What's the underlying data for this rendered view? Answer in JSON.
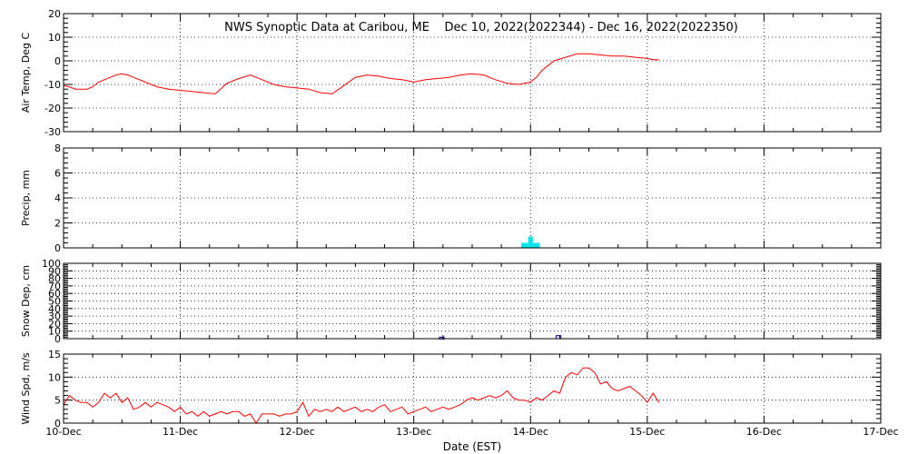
{
  "title": "NWS Synoptic Data at Caribou, ME    Dec 10, 2022(2022344) - Dec 16, 2022(2022350)",
  "x_axis": {
    "label": "Date (EST)",
    "ticks": [
      "10-Dec",
      "11-Dec",
      "12-Dec",
      "13-Dec",
      "14-Dec",
      "15-Dec",
      "16-Dec",
      "17-Dec"
    ],
    "range_days": [
      0,
      7
    ]
  },
  "colors": {
    "temp": "#ff0000",
    "precip": "#00e5ee",
    "snow": "#00008b",
    "wind": "#ff0000",
    "frame": "#000000"
  },
  "chart_data": [
    {
      "id": "air-temp",
      "type": "line",
      "ylabel": "Air Temp, Deg C",
      "ylim": [
        -30,
        20
      ],
      "yticks": [
        -30,
        -20,
        -10,
        0,
        10,
        20
      ],
      "grid": true,
      "x_days": [
        0,
        0.05,
        0.1,
        0.15,
        0.2,
        0.25,
        0.3,
        0.35,
        0.4,
        0.45,
        0.5,
        0.55,
        0.6,
        0.7,
        0.8,
        0.9,
        1.0,
        1.1,
        1.2,
        1.3,
        1.4,
        1.5,
        1.6,
        1.7,
        1.8,
        1.9,
        2.0,
        2.1,
        2.2,
        2.3,
        2.4,
        2.5,
        2.6,
        2.7,
        2.8,
        2.9,
        3.0,
        3.1,
        3.2,
        3.3,
        3.4,
        3.5,
        3.6,
        3.7,
        3.8,
        3.9,
        4.0,
        4.05,
        4.1,
        4.15,
        4.2,
        4.3,
        4.4,
        4.5,
        4.6,
        4.7,
        4.8,
        4.9,
        5.0,
        5.05,
        5.1
      ],
      "values": [
        -10.5,
        -11,
        -12,
        -12,
        -12,
        -11,
        -9,
        -8,
        -7,
        -6,
        -5.5,
        -6,
        -7,
        -9,
        -11,
        -12,
        -12.5,
        -13,
        -13.5,
        -14,
        -9.5,
        -7.5,
        -6,
        -8,
        -10,
        -11,
        -11.5,
        -12,
        -13.5,
        -14,
        -10.5,
        -7,
        -6,
        -6.5,
        -7.5,
        -8,
        -9,
        -8,
        -7.5,
        -7,
        -6,
        -5.5,
        -6,
        -8,
        -9.5,
        -10,
        -9,
        -7,
        -4,
        -2,
        0,
        1.5,
        3,
        3,
        2.5,
        2,
        2,
        1.5,
        1,
        0.5,
        0.5
      ]
    },
    {
      "id": "precip",
      "type": "bar",
      "ylabel": "Precip, mm",
      "ylim": [
        0,
        8
      ],
      "yticks": [
        0,
        2,
        4,
        6,
        8
      ],
      "grid": true,
      "bars": [
        {
          "x_start_day": 3.92,
          "x_end_day": 3.98,
          "value": 0.4
        },
        {
          "x_start_day": 3.98,
          "x_end_day": 4.02,
          "value": 0.9
        },
        {
          "x_start_day": 4.02,
          "x_end_day": 4.08,
          "value": 0.4
        }
      ]
    },
    {
      "id": "snow-depth",
      "type": "bar",
      "ylabel": "Snow Dep, cm",
      "ylim": [
        0,
        100
      ],
      "yticks": [
        0,
        10,
        20,
        30,
        40,
        50,
        60,
        70,
        80,
        90,
        100
      ],
      "grid": true,
      "bars": [
        {
          "x_start_day": 3.22,
          "x_end_day": 3.26,
          "value": 2
        },
        {
          "x_start_day": 4.22,
          "x_end_day": 4.26,
          "value": 4
        }
      ]
    },
    {
      "id": "wind-speed",
      "type": "line",
      "ylabel": "Wind Spd, m/s",
      "ylim": [
        0,
        15
      ],
      "yticks": [
        0,
        5,
        10,
        15
      ],
      "grid": true,
      "x_days": [
        0,
        0.05,
        0.1,
        0.15,
        0.2,
        0.25,
        0.3,
        0.35,
        0.4,
        0.45,
        0.5,
        0.55,
        0.6,
        0.65,
        0.7,
        0.75,
        0.8,
        0.85,
        0.9,
        0.95,
        1.0,
        1.05,
        1.1,
        1.15,
        1.2,
        1.25,
        1.3,
        1.35,
        1.4,
        1.45,
        1.5,
        1.55,
        1.6,
        1.65,
        1.7,
        1.75,
        1.8,
        1.85,
        1.9,
        1.95,
        2.0,
        2.05,
        2.1,
        2.15,
        2.2,
        2.25,
        2.3,
        2.35,
        2.4,
        2.45,
        2.5,
        2.55,
        2.6,
        2.65,
        2.7,
        2.75,
        2.8,
        2.85,
        2.9,
        2.95,
        3.0,
        3.05,
        3.1,
        3.15,
        3.2,
        3.25,
        3.3,
        3.35,
        3.4,
        3.45,
        3.5,
        3.55,
        3.6,
        3.65,
        3.7,
        3.75,
        3.8,
        3.85,
        3.9,
        3.95,
        4.0,
        4.05,
        4.1,
        4.15,
        4.2,
        4.25,
        4.3,
        4.35,
        4.4,
        4.45,
        4.5,
        4.55,
        4.6,
        4.65,
        4.7,
        4.75,
        4.8,
        4.85,
        4.9,
        4.95,
        5.0,
        5.05,
        5.1
      ],
      "values": [
        4,
        6,
        5,
        4.5,
        4.5,
        3.5,
        4.5,
        6.5,
        5.5,
        6.5,
        4.5,
        5.5,
        3,
        3.5,
        4.5,
        3.5,
        4.5,
        4,
        3.5,
        2.5,
        3.5,
        2,
        2.5,
        1.5,
        2.5,
        1.5,
        2,
        2.5,
        2,
        2.5,
        2.5,
        1.5,
        2,
        0,
        2,
        2,
        2,
        1.5,
        2,
        2,
        2.5,
        4.5,
        1.5,
        3,
        2.5,
        3,
        2.5,
        3.5,
        2.5,
        3,
        3.5,
        2.5,
        3,
        2.5,
        3.5,
        4,
        2.5,
        3,
        3.5,
        2,
        2.5,
        3,
        3.5,
        2.5,
        3,
        3.5,
        3,
        3.5,
        4,
        5,
        5.5,
        5,
        5.5,
        6,
        5.5,
        6,
        7,
        5.5,
        5,
        5,
        4.5,
        5.5,
        5,
        6,
        7,
        6.5,
        10,
        11,
        10.5,
        12,
        12,
        11,
        8.5,
        9,
        7.5,
        7,
        7.5,
        8,
        7,
        6,
        4.5,
        6.5,
        4.5
      ]
    }
  ]
}
